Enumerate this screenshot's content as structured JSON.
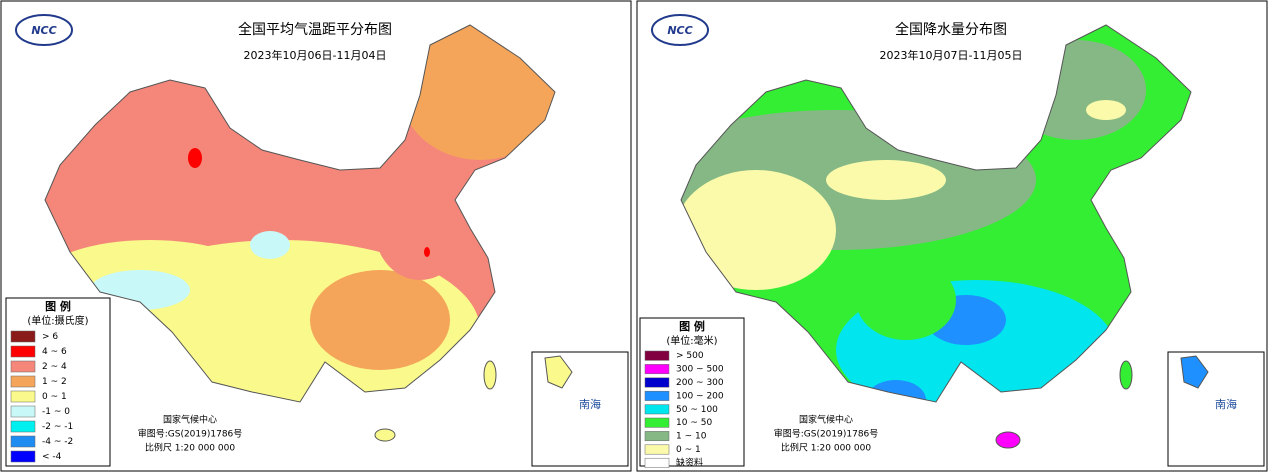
{
  "panels": [
    {
      "logo": "NCC",
      "title": "全国平均气温距平分布图",
      "subtitle": "2023年10月06日-11月04日",
      "legend": {
        "title": "图 例",
        "unit": "(单位:摄氏度)",
        "items": [
          {
            "label": "> 6",
            "color": "#8b1a1a"
          },
          {
            "label": "4 ~ 6",
            "color": "#ff0000"
          },
          {
            "label": "2 ~ 4",
            "color": "#f4877a"
          },
          {
            "label": "1 ~ 2",
            "color": "#f5a55a"
          },
          {
            "label": "0 ~ 1",
            "color": "#fafa8c"
          },
          {
            "label": "-1 ~ 0",
            "color": "#c8f8f8"
          },
          {
            "label": "-2 ~ -1",
            "color": "#00f0f0"
          },
          {
            "label": "-4 ~ -2",
            "color": "#1e8cf0"
          },
          {
            "label": "< -4",
            "color": "#0000ff"
          }
        ]
      },
      "footer": [
        "国家气候中心",
        "审图号:GS(2019)1786号",
        "比例尺 1:20 000 000"
      ],
      "inset_label": "南海"
    },
    {
      "logo": "NCC",
      "title": "全国降水量分布图",
      "subtitle": "2023年10月07日-11月05日",
      "legend": {
        "title": "图 例",
        "unit": "(单位:毫米)",
        "items": [
          {
            "label": "> 500",
            "color": "#800040"
          },
          {
            "label": "300 ~ 500",
            "color": "#ff00ff"
          },
          {
            "label": "200 ~ 300",
            "color": "#0000cd"
          },
          {
            "label": "100 ~ 200",
            "color": "#1e90ff"
          },
          {
            "label": "50 ~ 100",
            "color": "#00e5ee"
          },
          {
            "label": "10 ~ 50",
            "color": "#33ee33"
          },
          {
            "label": "1 ~ 10",
            "color": "#86b886"
          },
          {
            "label": "0 ~ 1",
            "color": "#fafaaa"
          },
          {
            "label": "缺资料",
            "color": "#ffffff"
          }
        ]
      },
      "footer": [
        "国家气候中心",
        "审图号:GS(2019)1786号",
        "比例尺 1:20 000 000"
      ],
      "inset_label": "南海"
    }
  ]
}
